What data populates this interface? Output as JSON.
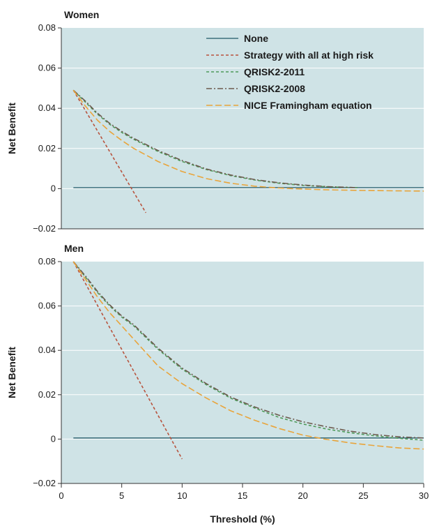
{
  "colors": {
    "plot_background": "#cfe3e6",
    "grid": "#ffffff",
    "axis": "#333333",
    "none": "#3d6f7c",
    "high_risk": "#b8533d",
    "qrisk2_2011": "#4f9a5a",
    "qrisk2_2008": "#6d5a4e",
    "nice": "#e9a43a"
  },
  "chart_data": [
    {
      "type": "line",
      "title": "Women",
      "xlabel": "",
      "ylabel": "Net Benefit",
      "xlim": [
        0,
        30
      ],
      "ylim": [
        -0.02,
        0.08
      ],
      "yticks": [
        -0.02,
        0,
        0.02,
        0.04,
        0.06,
        0.08
      ],
      "ytick_labels": [
        "−0.02",
        "0",
        "0.02",
        "0.04",
        "0.06",
        "0.08"
      ],
      "xticks": [],
      "xtick_labels": [],
      "grid": true,
      "legend": "top-right",
      "series": [
        {
          "name": "None",
          "style": "solid",
          "color": "#3d6f7c",
          "x": [
            1,
            30
          ],
          "y": [
            0.0005,
            0.0005
          ]
        },
        {
          "name": "Strategy with all at high risk",
          "style": "dashed",
          "color": "#b8533d",
          "x": [
            1,
            7
          ],
          "y": [
            0.049,
            -0.012
          ]
        },
        {
          "name": "QRISK2-2011",
          "style": "dashed",
          "color": "#4f9a5a",
          "x": [
            1,
            2,
            3,
            4,
            5,
            6,
            8,
            10,
            12,
            14,
            16,
            18,
            20,
            22,
            24.5
          ],
          "y": [
            0.049,
            0.043,
            0.037,
            0.032,
            0.028,
            0.0245,
            0.0185,
            0.0135,
            0.0095,
            0.0065,
            0.0043,
            0.0027,
            0.0016,
            0.0009,
            0.0005
          ]
        },
        {
          "name": "QRISK2-2008",
          "style": "dashdot",
          "color": "#6d5a4e",
          "x": [
            1,
            2,
            3,
            4,
            5,
            6,
            8,
            10,
            12,
            14,
            16,
            18,
            20,
            22,
            24.5
          ],
          "y": [
            0.049,
            0.0435,
            0.0375,
            0.0325,
            0.0285,
            0.025,
            0.019,
            0.014,
            0.0098,
            0.0068,
            0.0045,
            0.0029,
            0.0018,
            0.001,
            0.0005
          ]
        },
        {
          "name": "NICE Framingham equation",
          "style": "longdash",
          "color": "#e9a43a",
          "x": [
            1,
            2,
            3,
            4,
            5,
            6,
            8,
            10,
            12,
            14,
            16,
            18,
            20,
            22,
            25,
            28,
            30
          ],
          "y": [
            0.049,
            0.041,
            0.034,
            0.0285,
            0.024,
            0.02,
            0.0135,
            0.0085,
            0.005,
            0.0027,
            0.0012,
            0.0003,
            -0.0002,
            -0.0006,
            -0.0009,
            -0.0011,
            -0.0012
          ]
        }
      ]
    },
    {
      "type": "line",
      "title": "Men",
      "xlabel": "Threshold (%)",
      "ylabel": "Net Benefit",
      "xlim": [
        0,
        30
      ],
      "ylim": [
        -0.02,
        0.08
      ],
      "yticks": [
        -0.02,
        0,
        0.02,
        0.04,
        0.06,
        0.08
      ],
      "ytick_labels": [
        "−0.02",
        "0",
        "0.02",
        "0.04",
        "0.06",
        "0.08"
      ],
      "xticks": [
        0,
        5,
        10,
        15,
        20,
        25,
        30
      ],
      "xtick_labels": [
        "0",
        "5",
        "10",
        "15",
        "20",
        "25",
        "30"
      ],
      "grid": true,
      "legend": "",
      "series": [
        {
          "name": "None",
          "style": "solid",
          "color": "#3d6f7c",
          "x": [
            1,
            30
          ],
          "y": [
            0.0005,
            0.0005
          ]
        },
        {
          "name": "Strategy with all at high risk",
          "style": "dashed",
          "color": "#b8533d",
          "x": [
            1,
            10
          ],
          "y": [
            0.08,
            -0.009
          ]
        },
        {
          "name": "QRISK2-2011",
          "style": "dashed",
          "color": "#4f9a5a",
          "x": [
            1,
            2,
            3,
            4,
            5,
            6,
            8,
            10,
            12,
            14,
            16,
            18,
            20,
            22,
            24,
            26,
            28,
            30
          ],
          "y": [
            0.08,
            0.073,
            0.066,
            0.06,
            0.055,
            0.051,
            0.0405,
            0.0315,
            0.0245,
            0.0185,
            0.014,
            0.0098,
            0.0068,
            0.0045,
            0.0028,
            0.0014,
            0.0003,
            -0.0005
          ]
        },
        {
          "name": "QRISK2-2008",
          "style": "dashdot",
          "color": "#6d5a4e",
          "x": [
            1,
            2,
            3,
            4,
            5,
            6,
            8,
            10,
            12,
            14,
            16,
            18,
            20,
            22,
            24,
            26,
            28,
            30
          ],
          "y": [
            0.08,
            0.0735,
            0.0665,
            0.0605,
            0.0555,
            0.0515,
            0.041,
            0.032,
            0.025,
            0.019,
            0.0145,
            0.0108,
            0.0078,
            0.0055,
            0.0035,
            0.002,
            0.001,
            0.0005
          ]
        },
        {
          "name": "NICE Framingham equation",
          "style": "longdash",
          "color": "#e9a43a",
          "x": [
            1,
            2,
            3,
            4,
            5,
            6,
            8,
            10,
            12,
            14,
            16,
            18,
            20,
            22,
            24,
            26,
            28,
            30
          ],
          "y": [
            0.08,
            0.072,
            0.064,
            0.057,
            0.051,
            0.045,
            0.033,
            0.025,
            0.0185,
            0.0128,
            0.0085,
            0.0048,
            0.0018,
            -0.0002,
            -0.0018,
            -0.003,
            -0.004,
            -0.0045
          ]
        }
      ]
    }
  ]
}
